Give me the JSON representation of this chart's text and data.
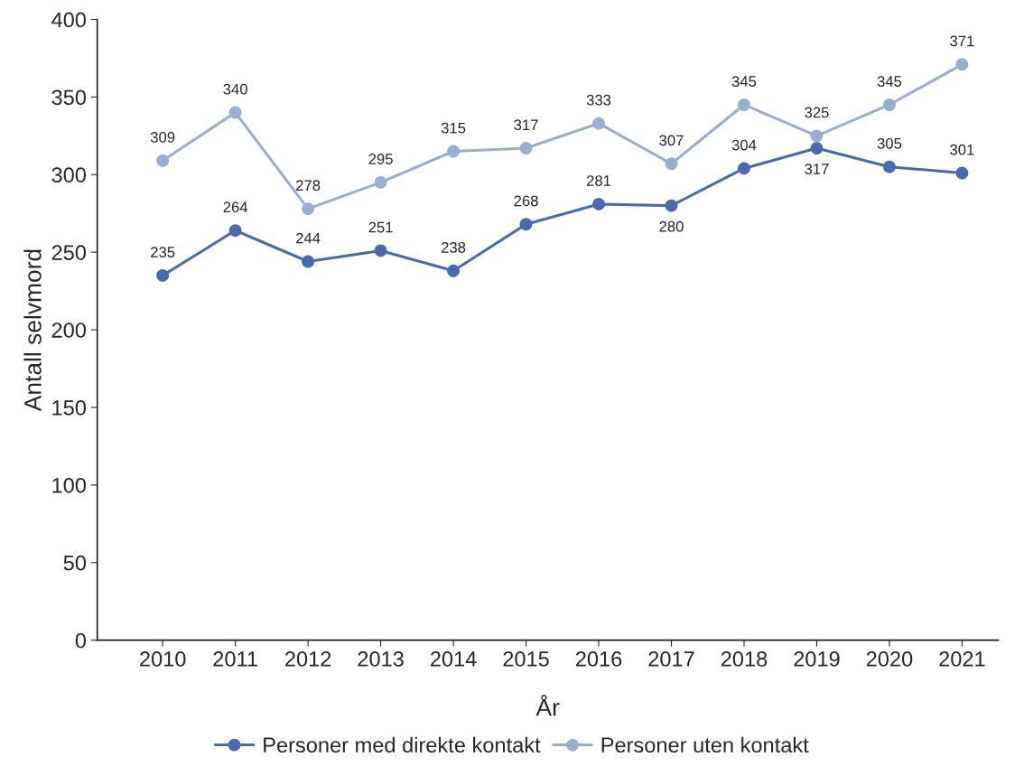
{
  "chart_data": {
    "type": "line",
    "xlabel": "År",
    "ylabel": "Antall selvmord",
    "categories": [
      "2010",
      "2011",
      "2012",
      "2013",
      "2014",
      "2015",
      "2016",
      "2017",
      "2018",
      "2019",
      "2020",
      "2021"
    ],
    "series": [
      {
        "name": "Personer med direkte kontakt",
        "color": "#4a6aad",
        "values": [
          235,
          264,
          244,
          251,
          238,
          268,
          281,
          280,
          304,
          317,
          305,
          301
        ]
      },
      {
        "name": "Personer uten kontakt",
        "color": "#9aafcf",
        "values": [
          309,
          340,
          278,
          295,
          315,
          317,
          333,
          307,
          345,
          325,
          345,
          371
        ]
      }
    ],
    "ylim": [
      0,
      400
    ],
    "yticks": [
      0,
      50,
      100,
      150,
      200,
      250,
      300,
      350,
      400
    ],
    "data_labels": true,
    "legend": "bottom",
    "grid": false,
    "marker": "circle",
    "line_style": "solid"
  }
}
